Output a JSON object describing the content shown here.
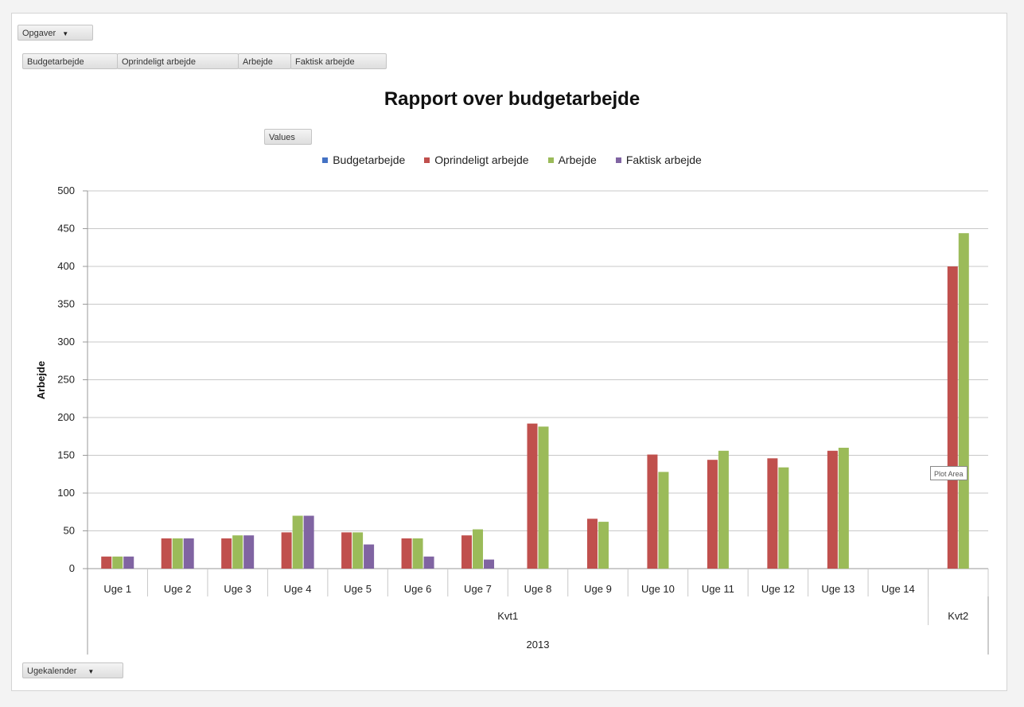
{
  "filters": {
    "top_dropdown": "Opgaver",
    "value_fields": [
      "Budgetarbejde",
      "Oprindeligt arbejde",
      "Arbejde",
      "Faktisk arbejde"
    ],
    "values_button": "Values",
    "bottom_dropdown": "Ugekalender"
  },
  "tooltip": "Plot Area",
  "chart_data": {
    "type": "bar",
    "title": "Rapport over budgetarbejde",
    "xlabel": "",
    "ylabel": "Arbejde",
    "ylim": [
      0,
      500
    ],
    "yticks": [
      0,
      50,
      100,
      150,
      200,
      250,
      300,
      350,
      400,
      450,
      500
    ],
    "grid": true,
    "legend_position": "top",
    "categories": [
      "Uge 1",
      "Uge 2",
      "Uge 3",
      "Uge 4",
      "Uge 5",
      "Uge 6",
      "Uge 7",
      "Uge 8",
      "Uge 9",
      "Uge 10",
      "Uge 11",
      "Uge 12",
      "Uge 13",
      "Uge 14",
      ""
    ],
    "groups": [
      {
        "label": "Kvt1",
        "count": 14
      },
      {
        "label": "Kvt2",
        "count": 1
      }
    ],
    "top_group": "2013",
    "series": [
      {
        "name": "Budgetarbejde",
        "color": "#4472c4",
        "values": [
          0,
          0,
          0,
          0,
          0,
          0,
          0,
          0,
          0,
          0,
          0,
          0,
          0,
          0,
          0
        ]
      },
      {
        "name": "Oprindeligt arbejde",
        "color": "#c0504d",
        "values": [
          16,
          40,
          40,
          48,
          48,
          40,
          44,
          192,
          66,
          151,
          144,
          146,
          156,
          0,
          400
        ]
      },
      {
        "name": "Arbejde",
        "color": "#9bbb59",
        "values": [
          16,
          40,
          44,
          70,
          48,
          40,
          52,
          188,
          62,
          128,
          156,
          134,
          160,
          0,
          444
        ]
      },
      {
        "name": "Faktisk arbejde",
        "color": "#8064a2",
        "values": [
          16,
          40,
          44,
          70,
          32,
          16,
          12,
          0,
          0,
          0,
          0,
          0,
          0,
          0,
          0
        ]
      }
    ]
  }
}
